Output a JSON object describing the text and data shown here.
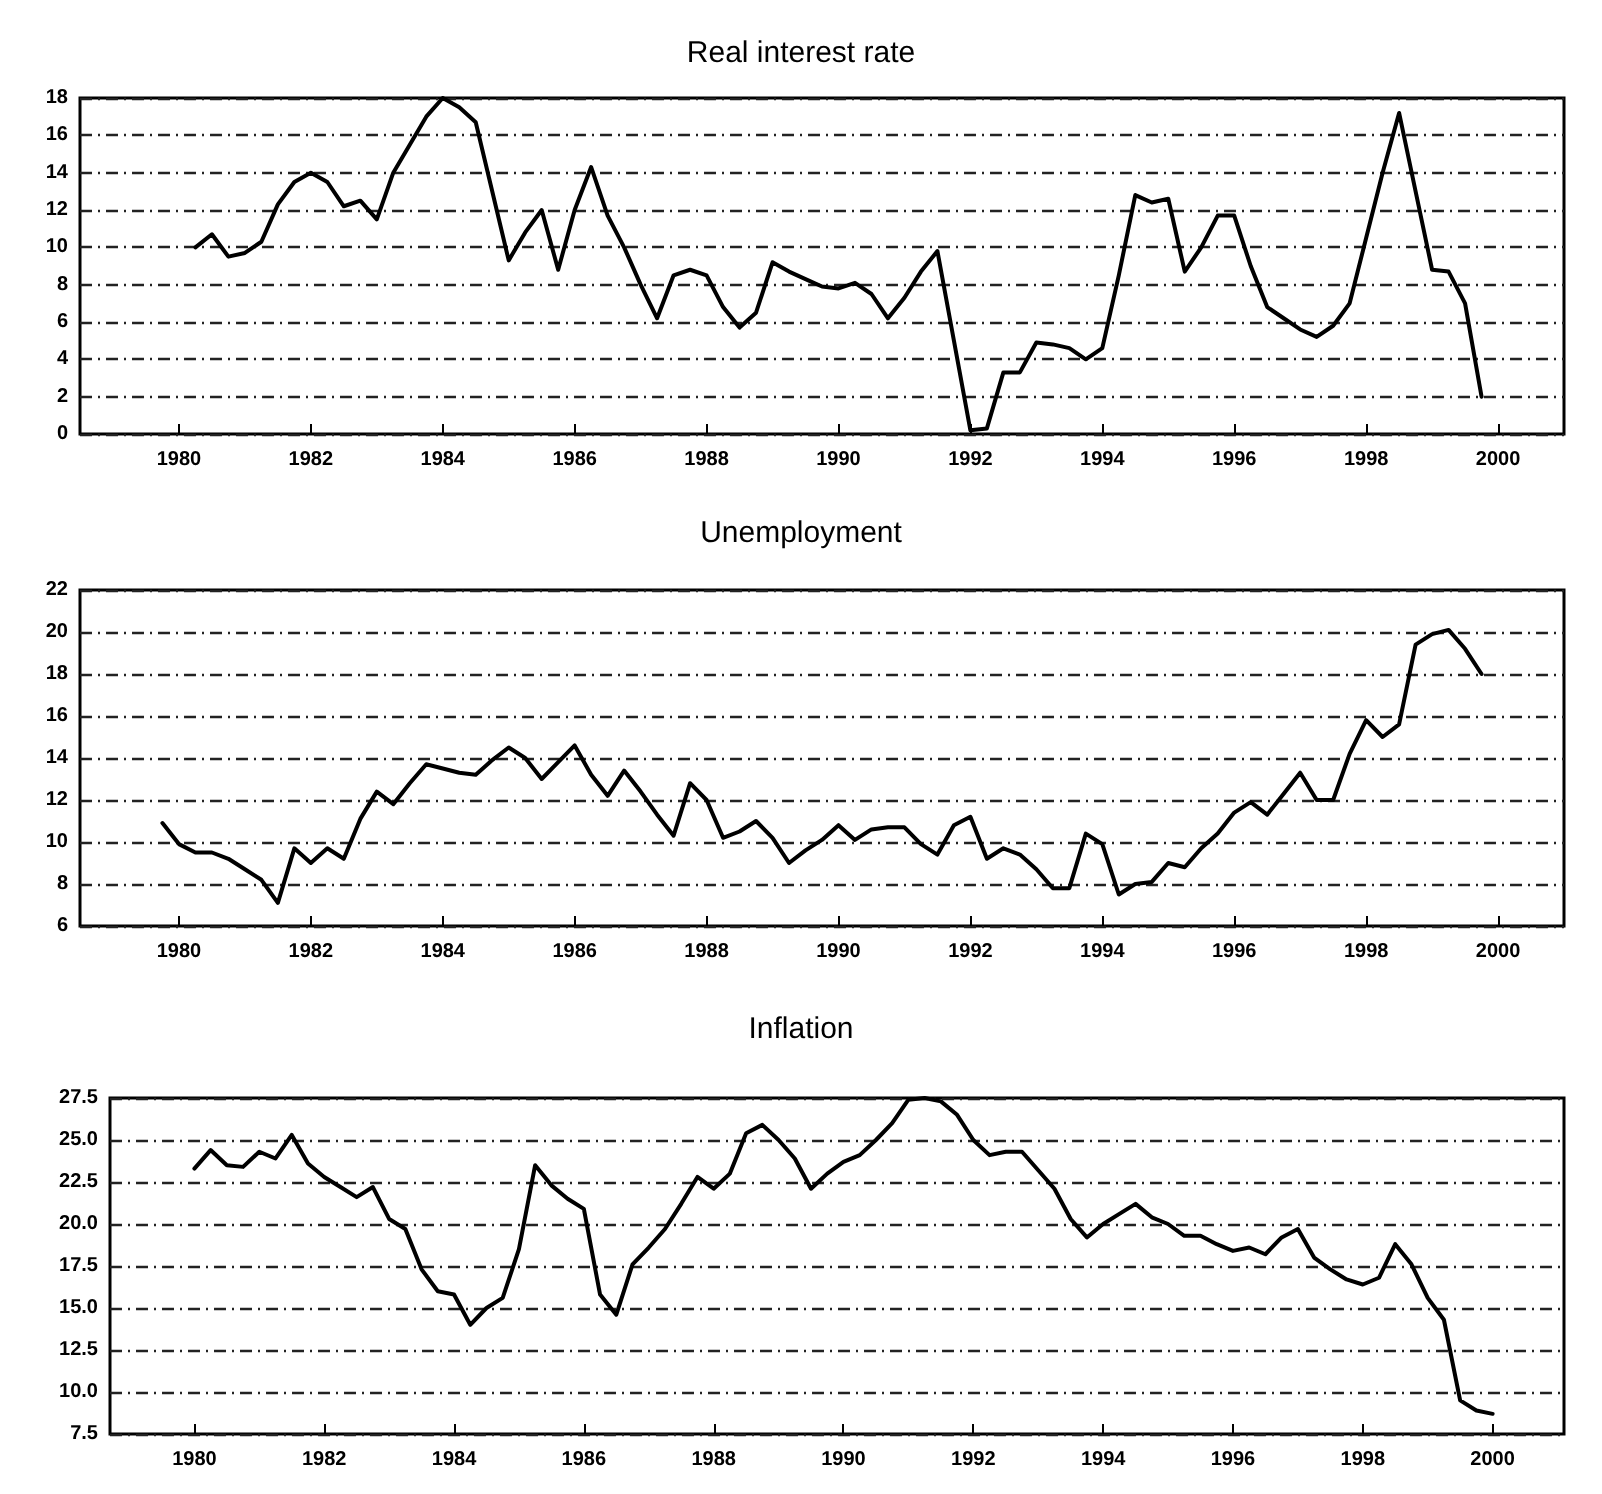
{
  "chart_data": [
    {
      "type": "line",
      "title": "Real interest rate",
      "color": "#000000",
      "marker": "none",
      "line_style": "solid",
      "grid": "y",
      "x": [
        1980.25,
        1980.5,
        1980.75,
        1981,
        1981.25,
        1981.5,
        1981.75,
        1982,
        1982.25,
        1982.5,
        1982.75,
        1983,
        1983.25,
        1983.5,
        1983.75,
        1984,
        1984.25,
        1984.5,
        1984.75,
        1985,
        1985.25,
        1985.5,
        1985.75,
        1986,
        1986.25,
        1986.5,
        1986.75,
        1987,
        1987.25,
        1987.5,
        1987.75,
        1988,
        1988.25,
        1988.5,
        1988.75,
        1989,
        1989.25,
        1989.5,
        1989.75,
        1990,
        1990.25,
        1990.5,
        1990.75,
        1991,
        1991.25,
        1991.5,
        1991.75,
        1992,
        1992.25,
        1992.5,
        1992.75,
        1993,
        1993.25,
        1993.5,
        1993.75,
        1994,
        1994.25,
        1994.5,
        1994.75,
        1995,
        1995.25,
        1995.5,
        1995.75,
        1996,
        1996.25,
        1996.5,
        1996.75,
        1997,
        1997.25,
        1997.5,
        1997.75,
        1998,
        1998.25,
        1998.5,
        1998.75,
        1999,
        1999.25,
        1999.5,
        1999.75
      ],
      "values": [
        10,
        10.7,
        9.5,
        9.7,
        10.3,
        12.3,
        13.5,
        14,
        13.5,
        12.2,
        12.5,
        11.5,
        14,
        15.5,
        17,
        18,
        17.5,
        16.7,
        13,
        9.3,
        10.8,
        12,
        8.8,
        12,
        14.3,
        11.7,
        10,
        8,
        6.2,
        8.5,
        8.8,
        8.5,
        6.8,
        5.7,
        6.5,
        9.2,
        8.7,
        8.3,
        7.9,
        7.8,
        8.1,
        7.5,
        6.2,
        7.3,
        8.7,
        9.8,
        5,
        0.2,
        0.3,
        3.3,
        3.3,
        4.9,
        4.8,
        4.6,
        4,
        4.6,
        8.5,
        12.8,
        12.4,
        12.6,
        8.7,
        10,
        11.7,
        11.7,
        9,
        6.8,
        6.2,
        5.6,
        5.2,
        5.8,
        7,
        10.5,
        14,
        17.2,
        13,
        8.8,
        8.7,
        7,
        2
      ],
      "xlim": [
        1978.5,
        2001
      ],
      "xticks": [
        1980,
        1982,
        1984,
        1986,
        1988,
        1990,
        1992,
        1994,
        1996,
        1998,
        2000
      ],
      "ylim": [
        0,
        18
      ],
      "yticks": [
        0,
        2,
        4,
        6,
        8,
        10,
        12,
        14,
        16,
        18
      ]
    },
    {
      "type": "line",
      "title": "Unemployment",
      "color": "#000000",
      "marker": "none",
      "line_style": "solid",
      "grid": "y",
      "x": [
        1979.75,
        1980,
        1980.25,
        1980.5,
        1980.75,
        1981,
        1981.25,
        1981.5,
        1981.75,
        1982,
        1982.25,
        1982.5,
        1982.75,
        1983,
        1983.25,
        1983.5,
        1983.75,
        1984,
        1984.25,
        1984.5,
        1984.75,
        1985,
        1985.25,
        1985.5,
        1985.75,
        1986,
        1986.25,
        1986.5,
        1986.75,
        1987,
        1987.25,
        1987.5,
        1987.75,
        1988,
        1988.25,
        1988.5,
        1988.75,
        1989,
        1989.25,
        1989.5,
        1989.75,
        1990,
        1990.25,
        1990.5,
        1990.75,
        1991,
        1991.25,
        1991.5,
        1991.75,
        1992,
        1992.25,
        1992.5,
        1992.75,
        1993,
        1993.25,
        1993.5,
        1993.75,
        1994,
        1994.25,
        1994.5,
        1994.75,
        1995,
        1995.25,
        1995.5,
        1995.75,
        1996,
        1996.25,
        1996.5,
        1996.75,
        1997,
        1997.25,
        1997.5,
        1997.75,
        1998,
        1998.25,
        1998.5,
        1998.75,
        1999,
        1999.25,
        1999.5,
        1999.75
      ],
      "values": [
        10.9,
        9.9,
        9.5,
        9.5,
        9.2,
        8.7,
        8.2,
        7.1,
        9.7,
        9,
        9.7,
        9.2,
        11.1,
        12.4,
        11.8,
        12.8,
        13.7,
        13.5,
        13.3,
        13.2,
        13.9,
        14.5,
        14,
        13,
        13.8,
        14.6,
        13.2,
        12.2,
        13.4,
        12.4,
        11.3,
        10.3,
        12.8,
        12,
        10.2,
        10.5,
        11,
        10.2,
        9,
        9.6,
        10.1,
        10.8,
        10.1,
        10.6,
        10.7,
        10.7,
        9.9,
        9.4,
        10.8,
        11.2,
        9.2,
        9.7,
        9.4,
        8.7,
        7.8,
        7.8,
        10.4,
        9.9,
        7.5,
        8,
        8.1,
        9,
        8.8,
        9.7,
        10.4,
        11.4,
        11.9,
        11.3,
        12.3,
        13.3,
        12,
        12,
        14.2,
        15.8,
        15,
        15.6,
        19.4,
        19.9,
        20.1,
        19.2,
        18
      ],
      "xlim": [
        1978.5,
        2001
      ],
      "xticks": [
        1980,
        1982,
        1984,
        1986,
        1988,
        1990,
        1992,
        1994,
        1996,
        1998,
        2000
      ],
      "ylim": [
        6,
        22
      ],
      "yticks": [
        6,
        8,
        10,
        12,
        14,
        16,
        18,
        20,
        22
      ]
    },
    {
      "type": "line",
      "title": "Inflation",
      "color": "#000000",
      "marker": "none",
      "line_style": "solid",
      "grid": "y",
      "x": [
        1980,
        1980.25,
        1980.5,
        1980.75,
        1981,
        1981.25,
        1981.5,
        1981.75,
        1982,
        1982.25,
        1982.5,
        1982.75,
        1983,
        1983.25,
        1983.5,
        1983.75,
        1984,
        1984.25,
        1984.5,
        1984.75,
        1985,
        1985.25,
        1985.5,
        1985.75,
        1986,
        1986.25,
        1986.5,
        1986.75,
        1987,
        1987.25,
        1987.5,
        1987.75,
        1988,
        1988.25,
        1988.5,
        1988.75,
        1989,
        1989.25,
        1989.5,
        1989.75,
        1990,
        1990.25,
        1990.5,
        1990.75,
        1991,
        1991.25,
        1991.5,
        1991.75,
        1992,
        1992.25,
        1992.5,
        1992.75,
        1993,
        1993.25,
        1993.5,
        1993.75,
        1994,
        1994.25,
        1994.5,
        1994.75,
        1995,
        1995.25,
        1995.5,
        1995.75,
        1996,
        1996.25,
        1996.5,
        1996.75,
        1997,
        1997.25,
        1997.5,
        1997.75,
        1998,
        1998.25,
        1998.5,
        1998.75,
        1999,
        1999.25,
        1999.5,
        1999.75,
        2000
      ],
      "values": [
        23.3,
        24.4,
        23.5,
        23.4,
        24.3,
        23.9,
        25.3,
        23.6,
        22.8,
        22.2,
        21.6,
        22.2,
        20.3,
        19.7,
        17.3,
        16,
        15.8,
        14,
        15,
        15.6,
        18.5,
        23.5,
        22.3,
        21.5,
        20.9,
        15.8,
        14.6,
        17.6,
        18.6,
        19.7,
        21.2,
        22.8,
        22.1,
        23,
        25.4,
        25.9,
        25,
        23.9,
        22.1,
        23,
        23.7,
        24.1,
        25,
        26,
        27.4,
        27.5,
        27.3,
        26.5,
        25,
        24.1,
        24.3,
        24.3,
        23.2,
        22.1,
        20.3,
        19.2,
        20,
        20.6,
        21.2,
        20.4,
        20,
        19.3,
        19.3,
        18.8,
        18.4,
        18.6,
        18.2,
        19.2,
        19.7,
        18,
        17.3,
        16.7,
        16.4,
        16.8,
        18.8,
        17.6,
        15.6,
        14.3,
        9.5,
        8.9,
        8.7
      ],
      "xlim": [
        1978.7,
        2001.1
      ],
      "xticks": [
        1980,
        1982,
        1984,
        1986,
        1988,
        1990,
        1992,
        1994,
        1996,
        1998,
        2000
      ],
      "ylim": [
        7.5,
        27.5
      ],
      "yticks": [
        {
          "value": 7.5,
          "label": "7.5"
        },
        {
          "value": 10,
          "label": "10.0"
        },
        {
          "value": 12.5,
          "label": "12.5"
        },
        {
          "value": 15,
          "label": "15.0"
        },
        {
          "value": 17.5,
          "label": "17.5"
        },
        {
          "value": 20,
          "label": "20.0"
        },
        {
          "value": 22.5,
          "label": "22.5"
        },
        {
          "value": 25,
          "label": "25.0"
        },
        {
          "value": 27.5,
          "label": "27.5"
        }
      ]
    }
  ]
}
